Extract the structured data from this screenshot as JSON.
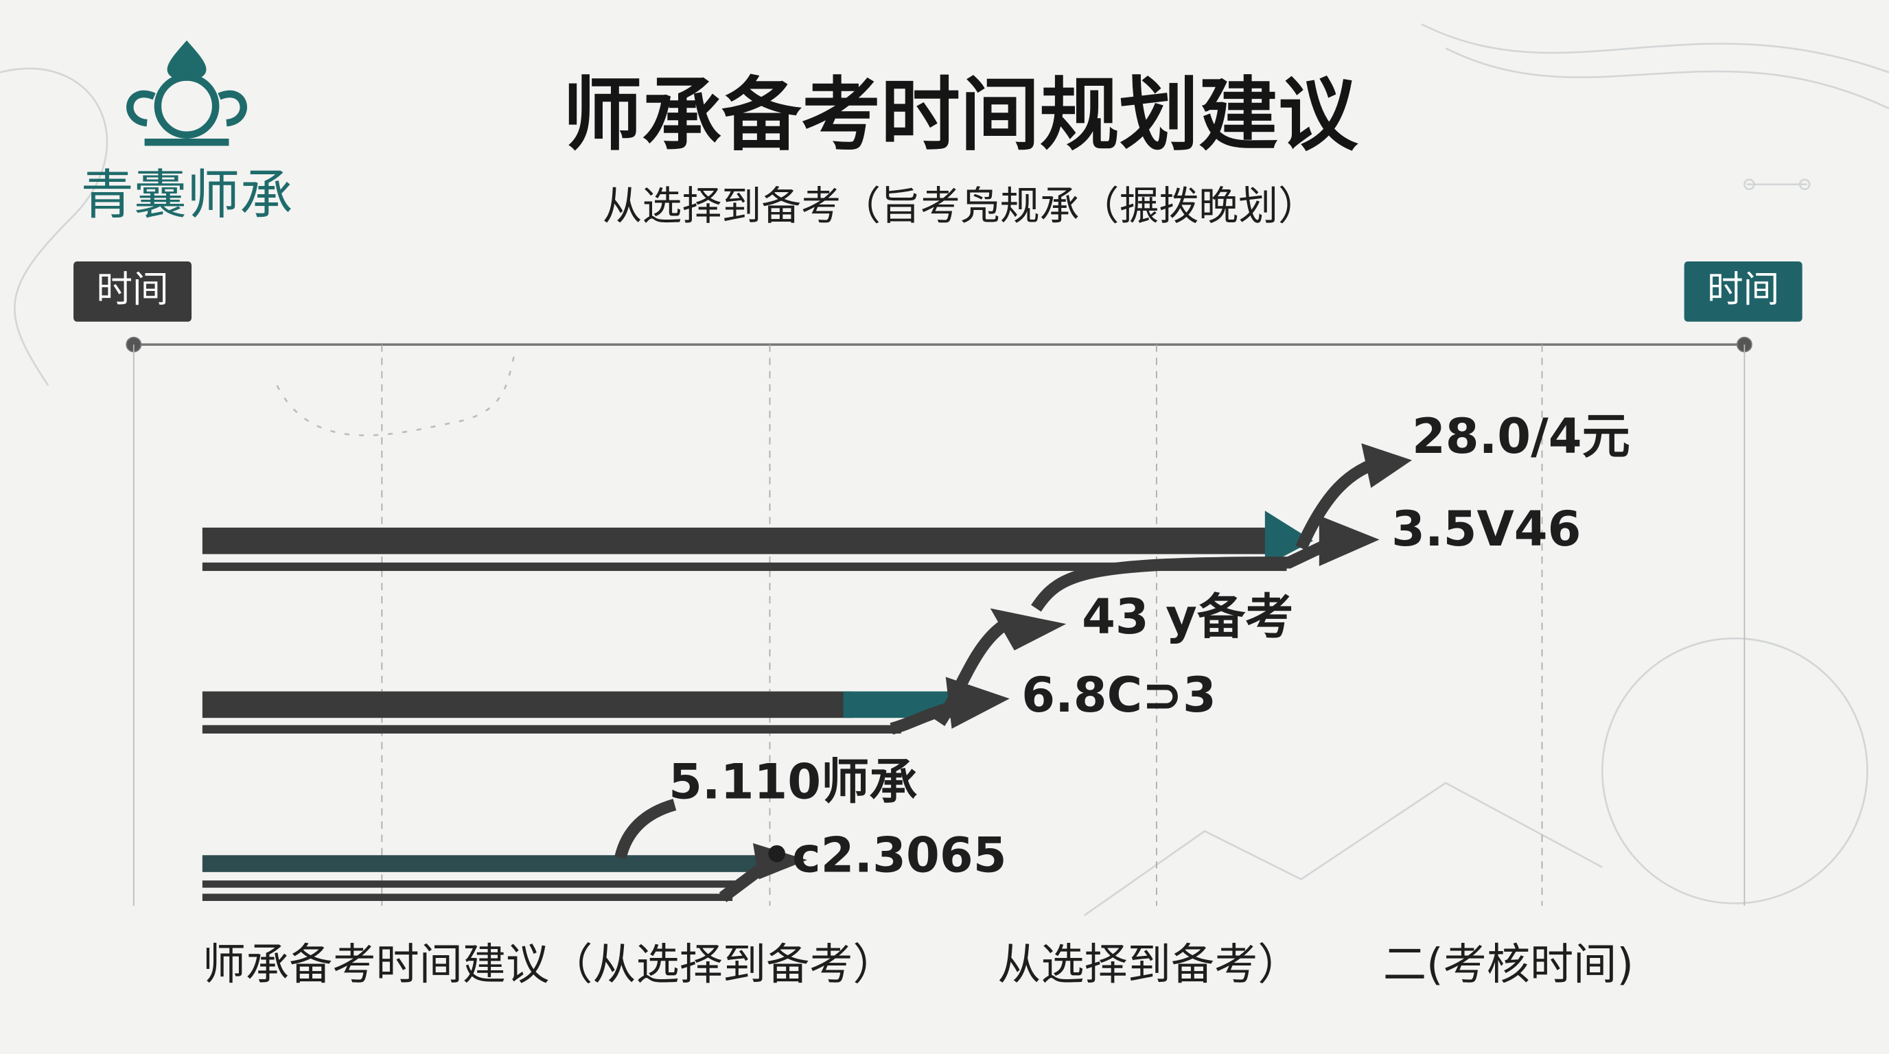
{
  "logo": {
    "text": "青囊师承"
  },
  "header": {
    "title": "师承备考时间规划建议",
    "subtitle": "从选择到备考（旨考凫规承（搌拨晚划）"
  },
  "timeline": {
    "start_label": "时间",
    "end_label": "时间"
  },
  "labels": [
    "28.0/4元",
    "3.5V46",
    "43 y备考",
    "6.8C⊃3",
    "5.110师承",
    "•c2.3065"
  ],
  "footer": [
    "师承备考时间建议（从选择到备考）",
    "从选择到备考）",
    "二(考核时间)"
  ]
}
